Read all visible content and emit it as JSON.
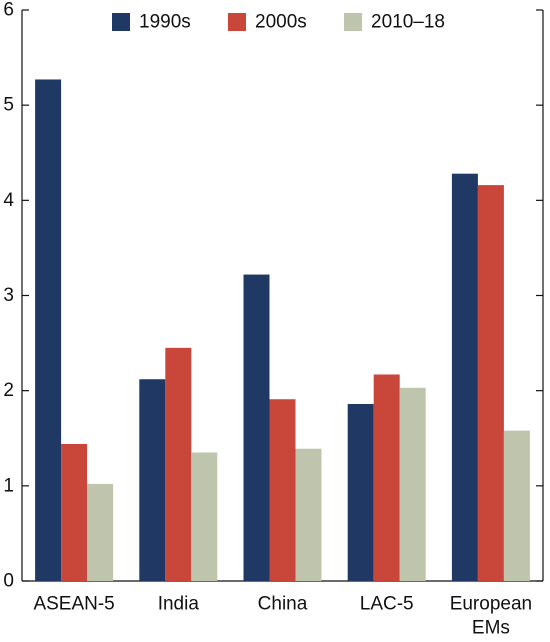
{
  "chart_data": {
    "type": "bar",
    "categories": [
      [
        "ASEAN-5"
      ],
      [
        "India"
      ],
      [
        "China"
      ],
      [
        "LAC-5"
      ],
      [
        "European",
        "EMs"
      ]
    ],
    "series": [
      {
        "name": "1990s",
        "color": "#1f3864",
        "values": [
          5.27,
          2.12,
          3.22,
          1.86,
          4.28
        ]
      },
      {
        "name": "2000s",
        "color": "#c8473a",
        "values": [
          1.44,
          2.45,
          1.91,
          2.17,
          4.16
        ]
      },
      {
        "name": "2010–18",
        "color": "#bfc4ac",
        "values": [
          1.02,
          1.35,
          1.39,
          2.03,
          1.58
        ]
      }
    ],
    "title": "",
    "xlabel": "",
    "ylabel": "",
    "ylim": [
      0,
      6
    ],
    "yticks": [
      0,
      1,
      2,
      3,
      4,
      5,
      6
    ],
    "grid": false,
    "legend_position": "top"
  }
}
